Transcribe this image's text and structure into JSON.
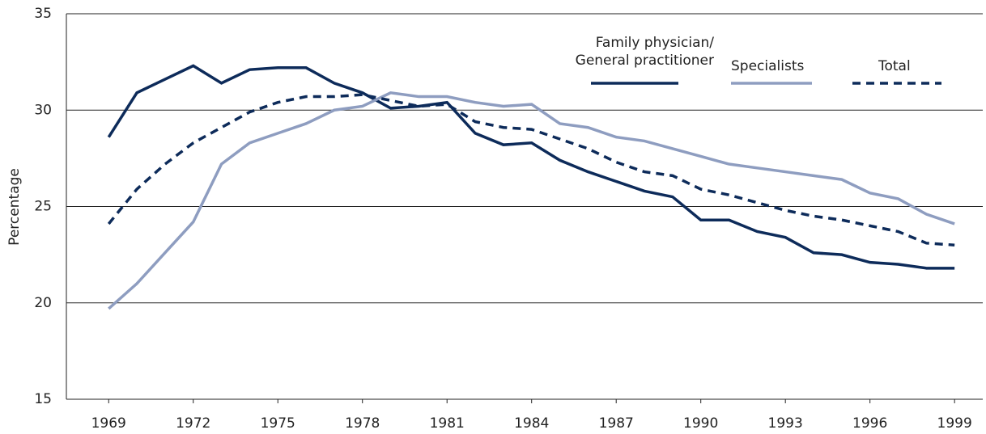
{
  "chart_data": {
    "type": "line",
    "y_label": "Percentage",
    "x": [
      1969,
      1970,
      1971,
      1972,
      1973,
      1974,
      1975,
      1976,
      1977,
      1978,
      1979,
      1980,
      1981,
      1982,
      1983,
      1984,
      1985,
      1986,
      1987,
      1988,
      1989,
      1990,
      1991,
      1992,
      1993,
      1994,
      1995,
      1996,
      1997,
      1998,
      1999
    ],
    "series": [
      {
        "name": "Family physician/ General practitioner",
        "color": "#0d2b5a",
        "line_style": "solid",
        "values": [
          28.6,
          30.9,
          31.6,
          32.3,
          31.4,
          32.1,
          32.2,
          32.2,
          31.4,
          30.9,
          30.1,
          30.2,
          30.4,
          28.8,
          28.2,
          28.3,
          27.4,
          26.8,
          26.3,
          25.8,
          25.5,
          24.3,
          24.3,
          23.7,
          23.4,
          22.6,
          22.5,
          22.1,
          22.0,
          21.8,
          21.8
        ]
      },
      {
        "name": "Specialists",
        "color": "#8e9dc0",
        "line_style": "solid",
        "values": [
          19.7,
          21.0,
          22.6,
          24.2,
          27.2,
          28.3,
          28.8,
          29.3,
          30.0,
          30.2,
          30.9,
          30.7,
          30.7,
          30.4,
          30.2,
          30.3,
          29.3,
          29.1,
          28.6,
          28.4,
          28.0,
          27.6,
          27.2,
          27.0,
          26.8,
          26.6,
          26.4,
          25.7,
          25.4,
          24.6,
          24.1
        ]
      },
      {
        "name": "Total",
        "color": "#0d2b5a",
        "line_style": "dashed",
        "values": [
          24.1,
          25.9,
          27.2,
          28.3,
          29.1,
          29.9,
          30.4,
          30.7,
          30.7,
          30.8,
          30.5,
          30.2,
          30.3,
          29.4,
          29.1,
          29.0,
          28.5,
          28.0,
          27.3,
          26.8,
          26.6,
          25.9,
          25.6,
          25.2,
          24.8,
          24.5,
          24.3,
          24.0,
          23.7,
          23.1,
          23.0
        ]
      }
    ],
    "xlim": [
      1967.5,
      2000
    ],
    "xticks": [
      1969,
      1972,
      1975,
      1978,
      1981,
      1984,
      1987,
      1990,
      1993,
      1996,
      1999
    ],
    "ylim": [
      15,
      35
    ],
    "yticks": [
      15,
      20,
      25,
      30,
      35
    ],
    "grid": true
  }
}
